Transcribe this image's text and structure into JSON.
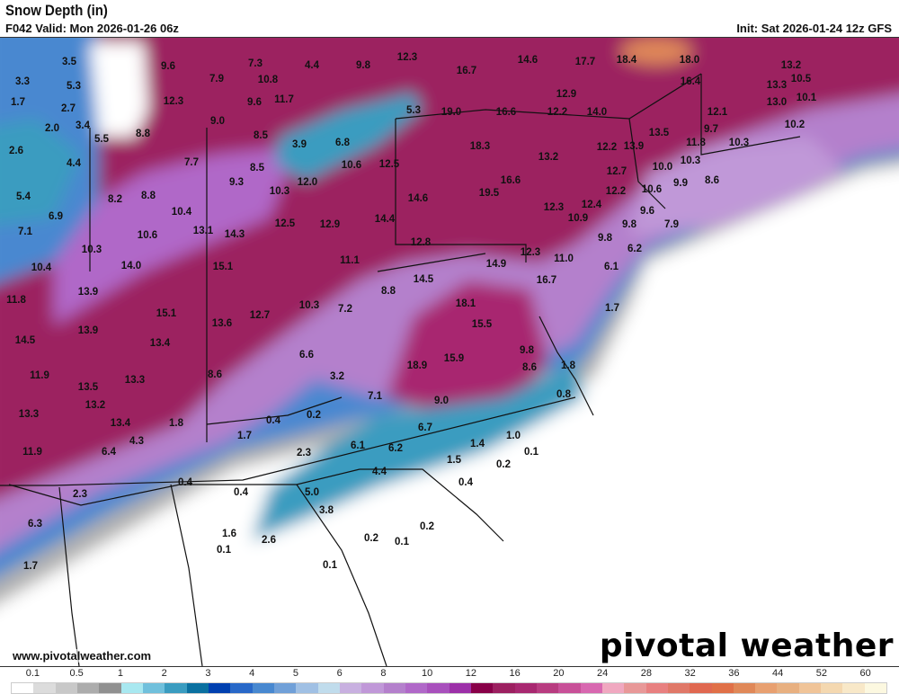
{
  "header": {
    "title": "Snow Depth (in)",
    "valid": "F042 Valid: Mon 2026-01-26 06z",
    "init": "Init: Sat 2026-01-24 12z GFS"
  },
  "footer": {
    "site": "www.pivotalweather.com",
    "logo": "pivotal weather"
  },
  "colorbar": {
    "labels": [
      "0.1",
      "0.5",
      "1",
      "2",
      "3",
      "4",
      "5",
      "6",
      "8",
      "10",
      "12",
      "16",
      "20",
      "24",
      "28",
      "32",
      "36",
      "44",
      "52",
      "60"
    ],
    "colors": [
      "#ffffff",
      "#dcdcdc",
      "#c8c8c8",
      "#acacac",
      "#909090",
      "#a8e8f0",
      "#70c0dc",
      "#3a9cc0",
      "#0a70a0",
      "#0040b0",
      "#2868c8",
      "#4888d0",
      "#70a0d8",
      "#a0c0e4",
      "#c0dcec",
      "#c8b0e0",
      "#c098d8",
      "#b480cc",
      "#b068c8",
      "#a850bc",
      "#9c30a8",
      "#880048",
      "#9c2060",
      "#a82870",
      "#b83c80",
      "#c85098",
      "#d868b0",
      "#f0a8c0",
      "#e89898",
      "#e88080",
      "#e07868",
      "#e06850",
      "#e07048",
      "#e08858",
      "#e8a070",
      "#e8b080",
      "#f0c498",
      "#f4d8b0",
      "#f8e8c8",
      "#fcf8e0"
    ]
  },
  "map_labels": [
    "3.5",
    "9.6",
    "7.3",
    "4.4",
    "9.8",
    "12.3",
    "16.7",
    "14.6",
    "17.7",
    "18.4",
    "18.0",
    "13.2",
    "3.3",
    "5.3",
    "7.9",
    "10.8",
    "10.5",
    "13.3",
    "16.4",
    "12.9",
    "10.1",
    "13.0",
    "1.7",
    "2.7",
    "12.3",
    "9.6",
    "11.7",
    "5.3",
    "19.0",
    "16.6",
    "12.2",
    "14.0",
    "12.1",
    "3.4",
    "2.0",
    "9.0",
    "8.5",
    "8.8",
    "5.5",
    "3.9",
    "6.8",
    "13.5",
    "9.7",
    "10.2",
    "2.6",
    "4.4",
    "7.7",
    "8.5",
    "18.3",
    "13.2",
    "12.2",
    "13.9",
    "11.8",
    "10.3",
    "10.3",
    "10.6",
    "12.5",
    "12.7",
    "10.0",
    "8.6",
    "9.3",
    "12.0",
    "10.3",
    "16.6",
    "9.9",
    "5.4",
    "8.2",
    "8.8",
    "19.5",
    "14.6",
    "12.2",
    "10.6",
    "12.4",
    "12.3",
    "6.9",
    "10.4",
    "14.4",
    "10.9",
    "9.8",
    "7.9",
    "9.6",
    "7.1",
    "10.6",
    "13.1",
    "14.3",
    "12.5",
    "12.9",
    "12.8",
    "9.8",
    "6.2",
    "12.3",
    "10.3",
    "10.4",
    "14.0",
    "15.1",
    "11.1",
    "14.9",
    "11.0",
    "6.1",
    "11.8",
    "13.9",
    "8.8",
    "14.5",
    "16.7",
    "15.1",
    "13.6",
    "12.7",
    "10.3",
    "7.2",
    "18.1",
    "1.7",
    "15.5",
    "14.5",
    "13.9",
    "13.4",
    "6.6",
    "3.2",
    "9.8",
    "18.9",
    "15.9",
    "8.6",
    "1.8",
    "11.9",
    "8.6",
    "13.5",
    "13.3",
    "7.1",
    "9.0",
    "0.8",
    "13.3",
    "13.2",
    "0.4",
    "0.2",
    "6.7",
    "13.4",
    "1.8",
    "4.3",
    "1.7",
    "6.1",
    "6.2",
    "1.4",
    "1.0",
    "0.1",
    "11.9",
    "6.4",
    "2.3",
    "1.5",
    "0.2",
    "4.4",
    "0.4",
    "0.4",
    "0.4",
    "5.0",
    "2.3",
    "3.8",
    "6.3",
    "1.6",
    "0.2",
    "2.6",
    "0.2",
    "0.1",
    "0.1",
    "0.1",
    "1.7"
  ]
}
